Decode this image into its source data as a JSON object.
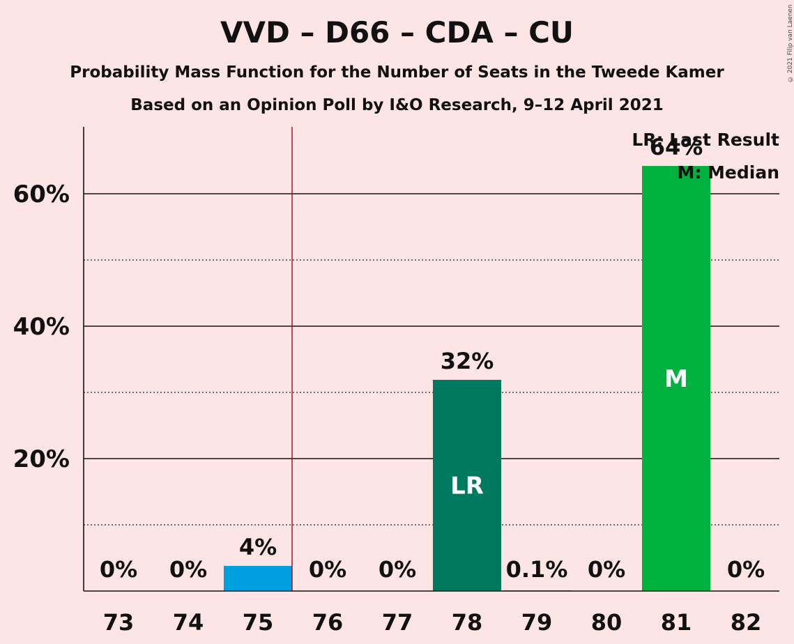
{
  "title": "VVD – D66 – CDA – CU",
  "subtitle": "Probability Mass Function for the Number of Seats in the Tweede Kamer",
  "subtitle2": "Based on an Opinion Poll by I&O Research, 9–12 April 2021",
  "copyright": "© 2021 Filip van Laenen",
  "chart_data": {
    "type": "bar",
    "categories": [
      "73",
      "74",
      "75",
      "76",
      "77",
      "78",
      "79",
      "80",
      "81",
      "82"
    ],
    "values": [
      0,
      0,
      3.8,
      0,
      0,
      31.9,
      0.1,
      0,
      64.2,
      0
    ],
    "value_labels": [
      "0%",
      "0%",
      "4%",
      "0%",
      "0%",
      "32%",
      "0.1%",
      "0%",
      "64%",
      "0%"
    ],
    "bar_colors": [
      "#00a0e0",
      "#00a0e0",
      "#00a0e0",
      "#00a0e0",
      "#00a0e0",
      "#007a5e",
      "#00a0e0",
      "#00a0e0",
      "#00b140",
      "#00a0e0"
    ],
    "bar_markers": [
      "",
      "",
      "",
      "",
      "",
      "LR",
      "",
      "",
      "M",
      ""
    ],
    "ylim": [
      0,
      70
    ],
    "yticks": [
      20,
      40,
      60
    ],
    "ytick_labels": [
      "20%",
      "40%",
      "60%"
    ],
    "minor_gridlines": [
      10,
      30,
      50
    ],
    "majority_line_after": "75",
    "majority_line_color": "#b00020",
    "legend": [
      "LR: Last Result",
      "M: Median"
    ],
    "legend_placement": "top-right"
  }
}
